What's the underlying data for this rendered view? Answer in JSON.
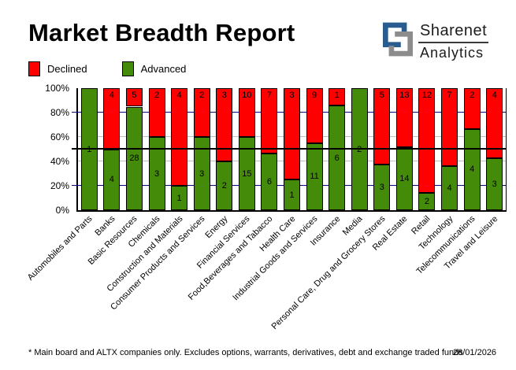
{
  "header": {
    "title": "Market Breadth Report",
    "logo": {
      "line1": "Sharenet",
      "line2": "Analytics",
      "blue": "#2a5d8f",
      "gray": "#8c8c8c"
    }
  },
  "legend": [
    {
      "label": "Declined",
      "color": "#ff0000"
    },
    {
      "label": "Advanced",
      "color": "#448b0a"
    }
  ],
  "chart_data": {
    "type": "bar",
    "stacked": true,
    "stack_mode": "percent",
    "title": "Market Breadth Report",
    "categories": [
      "Automobiles and Parts",
      "Banks",
      "Basic Resources",
      "Chemicals",
      "Construction and Materials",
      "Consumer Products and Services",
      "Energy",
      "Financial Services",
      "Food,Beverages and Tabacco",
      "Health Care",
      "Industrial Goods and Services",
      "Insurance",
      "Media",
      "Personal Care, Drug and Grocery Stores",
      "Real Estate",
      "Retail",
      "Technology",
      "Telecommunications",
      "Travel and Leisure"
    ],
    "series": [
      {
        "name": "Declined",
        "color": "#ff0000",
        "values": [
          0,
          4,
          5,
          2,
          4,
          2,
          3,
          10,
          7,
          3,
          9,
          1,
          0,
          5,
          13,
          12,
          7,
          2,
          4
        ]
      },
      {
        "name": "Advanced",
        "color": "#448b0a",
        "values": [
          1,
          4,
          28,
          3,
          1,
          3,
          2,
          15,
          6,
          1,
          11,
          6,
          2,
          3,
          14,
          2,
          4,
          4,
          3
        ]
      }
    ],
    "yticks": [
      "100%",
      "80%",
      "60%",
      "40%",
      "20%",
      "0%"
    ],
    "ylim": [
      0,
      100
    ],
    "gridlines": {
      "navy": [
        80,
        20
      ],
      "silver": [
        60,
        40
      ],
      "black_mid": 50
    },
    "legend_position": "top-left",
    "grid": true
  },
  "footer": {
    "note": "* Main board and ALTX companies only. Excludes options, warrants, derivatives, debt and exchange traded funds",
    "date": "26/01/2026"
  }
}
